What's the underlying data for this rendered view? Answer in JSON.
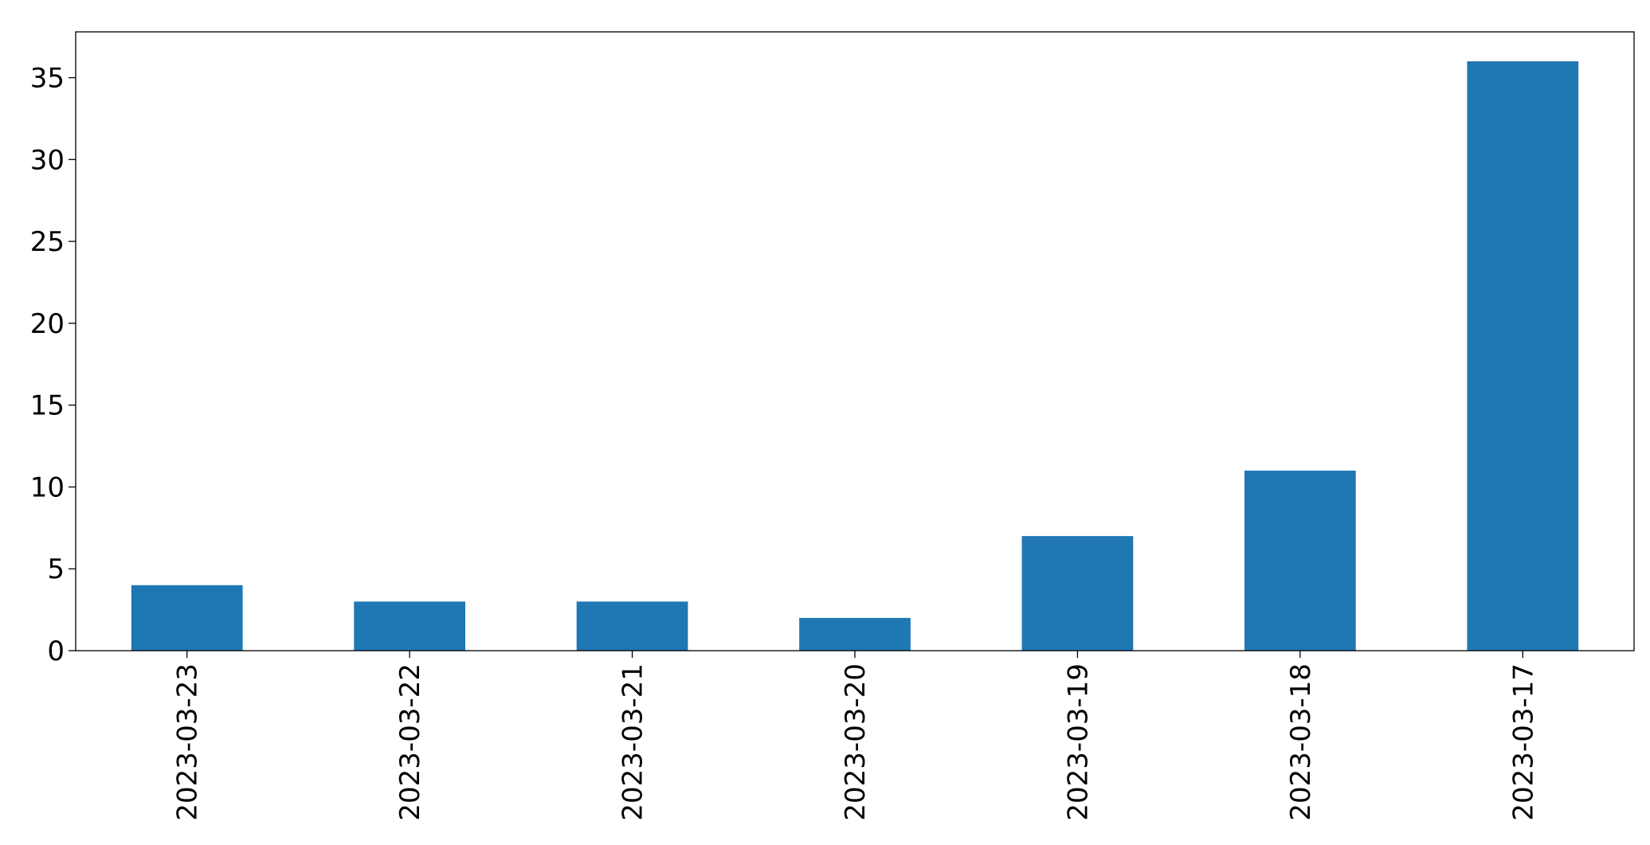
{
  "chart_data": {
    "type": "bar",
    "categories": [
      "2023-03-23",
      "2023-03-22",
      "2023-03-21",
      "2023-03-20",
      "2023-03-19",
      "2023-03-18",
      "2023-03-17"
    ],
    "values": [
      4,
      3,
      3,
      2,
      7,
      11,
      36
    ],
    "color": "#1f77b4",
    "ylim": [
      0,
      37.8
    ],
    "yticks": [
      0,
      5,
      10,
      15,
      20,
      25,
      30,
      35
    ],
    "grid": false
  }
}
